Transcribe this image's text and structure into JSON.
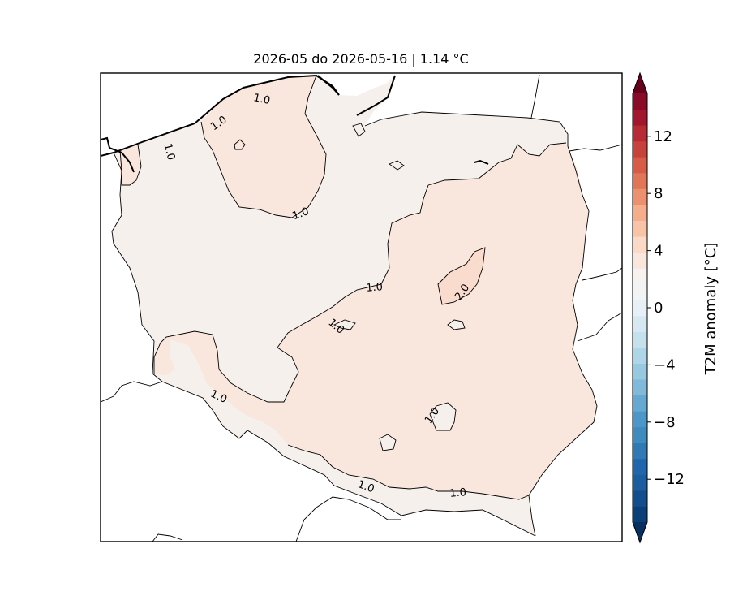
{
  "map": {
    "title": "2026-05 do 2026-05-16 | 1.14 °C",
    "contour_labels": {
      "north_coast": "1.0",
      "north_coast_2": "1.0",
      "west_coast": "1.0",
      "pomerania_south": "1.0",
      "center": "1.0",
      "center_west": "1.0",
      "east_hotspot": "2.0",
      "southwest": "1.0",
      "south_center": "1.0",
      "south_border": "1.0",
      "southeast_border": "1.0"
    },
    "colors": {
      "anomaly_0_to_1": "#f6f0ec",
      "anomaly_1_to_2": "#f9e6dc",
      "anomaly_2_plus": "#f9dccd"
    }
  },
  "colorbar": {
    "label": "T2M anomaly [°C]",
    "ticks": [
      "12",
      "8",
      "4",
      "0",
      "−4",
      "−8",
      "−12"
    ],
    "tick_values": [
      12,
      8,
      4,
      0,
      -4,
      -8,
      -12
    ],
    "range": [
      -15,
      15
    ],
    "colors": [
      "#053061",
      "#0b3f78",
      "#124e8d",
      "#1b5d9f",
      "#2166ac",
      "#2f79b5",
      "#3e8bc0",
      "#4d97c8",
      "#65a9d2",
      "#80b9da",
      "#97c9e1",
      "#afd6e8",
      "#c5e1ed",
      "#d6e9f2",
      "#e6f0f6",
      "#f2f3f5",
      "#f7f1ef",
      "#f9e6dc",
      "#fbd9c6",
      "#f8c3a6",
      "#f5ad8c",
      "#ed9070",
      "#e17557",
      "#d65c47",
      "#c7423a",
      "#b82b34",
      "#a3172e",
      "#8a0b28",
      "#67001f"
    ]
  }
}
